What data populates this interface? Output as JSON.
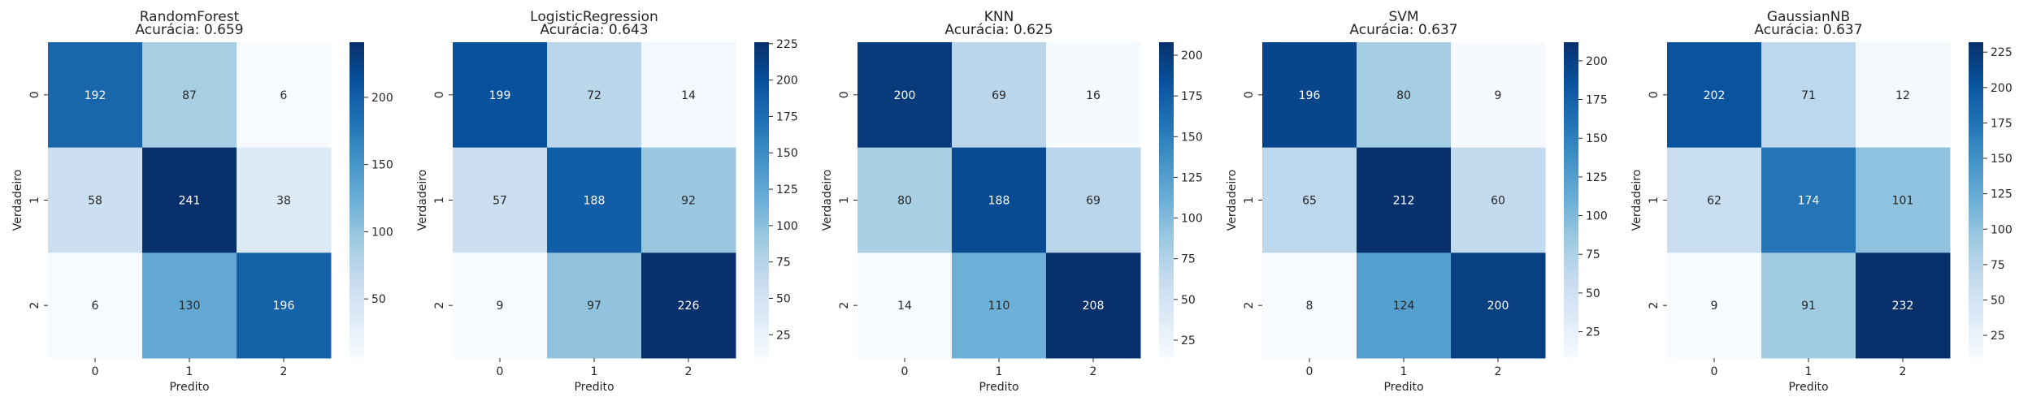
{
  "chart_data": [
    {
      "type": "heatmap",
      "title": "RandomForest",
      "subtitle": "Acurácia: 0.659",
      "xlabel": "Predito",
      "ylabel": "Verdadeiro",
      "x": [
        "0",
        "1",
        "2"
      ],
      "y": [
        "0",
        "1",
        "2"
      ],
      "values": [
        [
          192,
          87,
          6
        ],
        [
          58,
          241,
          38
        ],
        [
          6,
          130,
          196
        ]
      ],
      "colorbar_ticks": [
        50,
        100,
        150,
        200
      ],
      "colormap": "Blues"
    },
    {
      "type": "heatmap",
      "title": "LogisticRegression",
      "subtitle": "Acurácia: 0.643",
      "xlabel": "Predito",
      "ylabel": "Verdadeiro",
      "x": [
        "0",
        "1",
        "2"
      ],
      "y": [
        "0",
        "1",
        "2"
      ],
      "values": [
        [
          199,
          72,
          14
        ],
        [
          57,
          188,
          92
        ],
        [
          9,
          97,
          226
        ]
      ],
      "colorbar_ticks": [
        25,
        50,
        75,
        100,
        125,
        150,
        175,
        200,
        225
      ],
      "colormap": "Blues"
    },
    {
      "type": "heatmap",
      "title": "KNN",
      "subtitle": "Acurácia: 0.625",
      "xlabel": "Predito",
      "ylabel": "Verdadeiro",
      "x": [
        "0",
        "1",
        "2"
      ],
      "y": [
        "0",
        "1",
        "2"
      ],
      "values": [
        [
          200,
          69,
          16
        ],
        [
          80,
          188,
          69
        ],
        [
          14,
          110,
          208
        ]
      ],
      "colorbar_ticks": [
        25,
        50,
        75,
        100,
        125,
        150,
        175,
        200
      ],
      "colormap": "Blues"
    },
    {
      "type": "heatmap",
      "title": "SVM",
      "subtitle": "Acurácia: 0.637",
      "xlabel": "Predito",
      "ylabel": "Verdadeiro",
      "x": [
        "0",
        "1",
        "2"
      ],
      "y": [
        "0",
        "1",
        "2"
      ],
      "values": [
        [
          196,
          80,
          9
        ],
        [
          65,
          212,
          60
        ],
        [
          8,
          124,
          200
        ]
      ],
      "colorbar_ticks": [
        25,
        50,
        75,
        100,
        125,
        150,
        175,
        200
      ],
      "colormap": "Blues"
    },
    {
      "type": "heatmap",
      "title": "GaussianNB",
      "subtitle": "Acurácia: 0.637",
      "xlabel": "Predito",
      "ylabel": "Verdadeiro",
      "x": [
        "0",
        "1",
        "2"
      ],
      "y": [
        "0",
        "1",
        "2"
      ],
      "values": [
        [
          202,
          71,
          12
        ],
        [
          62,
          174,
          101
        ],
        [
          9,
          91,
          232
        ]
      ],
      "colorbar_ticks": [
        25,
        50,
        75,
        100,
        125,
        150,
        175,
        200,
        225
      ],
      "colormap": "Blues"
    }
  ]
}
